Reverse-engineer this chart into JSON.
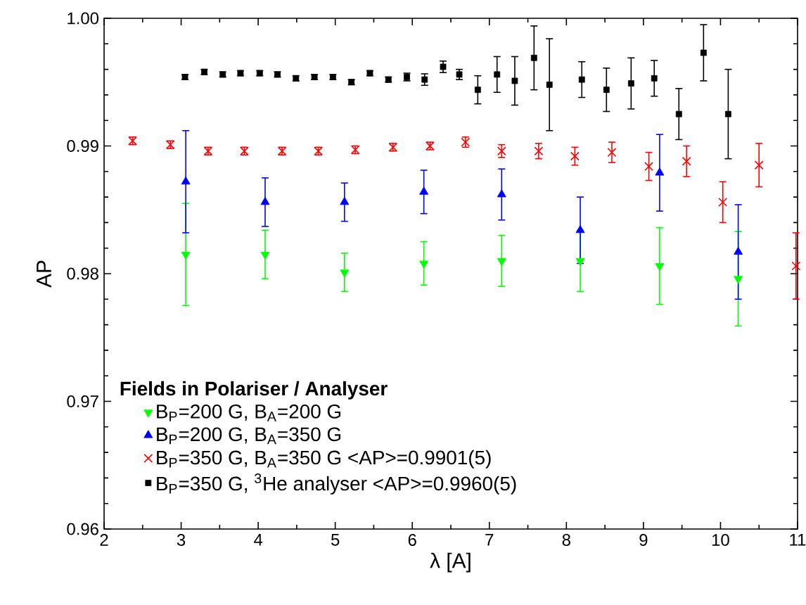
{
  "chart_data": {
    "type": "scatter",
    "xlabel": "λ [A]",
    "ylabel": "AP",
    "legend_title": "Fields in Polariser / Analyser",
    "legend": "bottom left",
    "xlim": [
      2,
      11
    ],
    "ylim": [
      0.96,
      1.0
    ],
    "xticks": [
      2,
      3,
      4,
      5,
      6,
      7,
      8,
      9,
      10,
      11
    ],
    "yticks": [
      0.96,
      0.97,
      0.98,
      0.99,
      {
        "value": 1.0,
        "label": "1.00"
      }
    ],
    "series": [
      {
        "name": "B$_{P}$=200 G, B$_{A}$=200 G",
        "color": "#00ff00",
        "marker": "triangle-down",
        "x": [
          3.06,
          4.09,
          5.12,
          6.15,
          7.16,
          8.18,
          9.21,
          10.23
        ],
        "values": [
          0.9815,
          0.9815,
          0.9801,
          0.9808,
          0.981,
          0.981,
          0.9806,
          0.9796
        ],
        "errors": [
          0.004,
          0.0019,
          0.0015,
          0.0017,
          0.002,
          0.0024,
          0.003,
          0.0037
        ]
      },
      {
        "name": "B$_{P}$=200 G, B$_{A}$=350 G",
        "color": "#0000ff",
        "marker": "triangle",
        "x": [
          3.06,
          4.09,
          5.12,
          6.15,
          7.16,
          8.18,
          9.21,
          10.23
        ],
        "values": [
          0.9872,
          0.9856,
          0.9856,
          0.9864,
          0.9862,
          0.9834,
          0.9879,
          0.9817
        ],
        "errors": [
          0.004,
          0.0019,
          0.0015,
          0.0017,
          0.002,
          0.0026,
          0.003,
          0.0037
        ]
      },
      {
        "name": "B$_{P}$=350 G, B$_{A}$=350 G <AP>=0.9901(5)",
        "color": "#ff0000",
        "marker": "cross",
        "x": [
          2.37,
          2.86,
          3.35,
          3.82,
          4.31,
          4.78,
          5.26,
          5.75,
          6.23,
          6.69,
          7.16,
          7.64,
          8.11,
          8.59,
          9.07,
          9.56,
          10.03,
          10.5,
          10.98
        ],
        "values": [
          0.9904,
          0.9901,
          0.9896,
          0.9896,
          0.9896,
          0.9896,
          0.9897,
          0.9899,
          0.99,
          0.9903,
          0.9896,
          0.9896,
          0.9892,
          0.9895,
          0.9884,
          0.9888,
          0.9856,
          0.9885,
          0.9806
        ],
        "errors": [
          0.0003,
          0.0003,
          0.0003,
          0.0003,
          0.0003,
          0.0003,
          0.0003,
          0.0003,
          0.0003,
          0.0004,
          0.0005,
          0.0006,
          0.0007,
          0.0008,
          0.0011,
          0.0012,
          0.0016,
          0.0017,
          0.0026
        ]
      },
      {
        "name": "B$_{P}$=350 G, $^{3}$He analyser <AP>=0.9960(5)",
        "color": "#000000",
        "marker": "square",
        "x": [
          3.05,
          3.3,
          3.54,
          3.77,
          4.02,
          4.25,
          4.49,
          4.73,
          4.97,
          5.21,
          5.45,
          5.69,
          5.93,
          6.16,
          6.4,
          6.61,
          6.85,
          7.1,
          7.33,
          7.58,
          7.78,
          8.2,
          8.52,
          8.84,
          9.14,
          9.46,
          9.78,
          10.1
        ],
        "values": [
          0.9954,
          0.9958,
          0.9956,
          0.9957,
          0.9957,
          0.9956,
          0.9953,
          0.9954,
          0.9954,
          0.995,
          0.9957,
          0.9952,
          0.9954,
          0.9952,
          0.9962,
          0.9956,
          0.9944,
          0.9956,
          0.9951,
          0.9969,
          0.9948,
          0.9952,
          0.9944,
          0.9949,
          0.9953,
          0.9925,
          0.9973,
          0.9925
        ],
        "errors": [
          0.0002,
          0.0002,
          0.0002,
          0.0002,
          0.0002,
          0.0002,
          0.0002,
          0.0002,
          0.0002,
          0.0002,
          0.0002,
          0.0002,
          0.0003,
          0.00045,
          0.00045,
          0.0004,
          0.0011,
          0.0014,
          0.0019,
          0.0025,
          0.0036,
          0.0014,
          0.0017,
          0.002,
          0.0014,
          0.002,
          0.0022,
          0.0035
        ]
      }
    ]
  }
}
